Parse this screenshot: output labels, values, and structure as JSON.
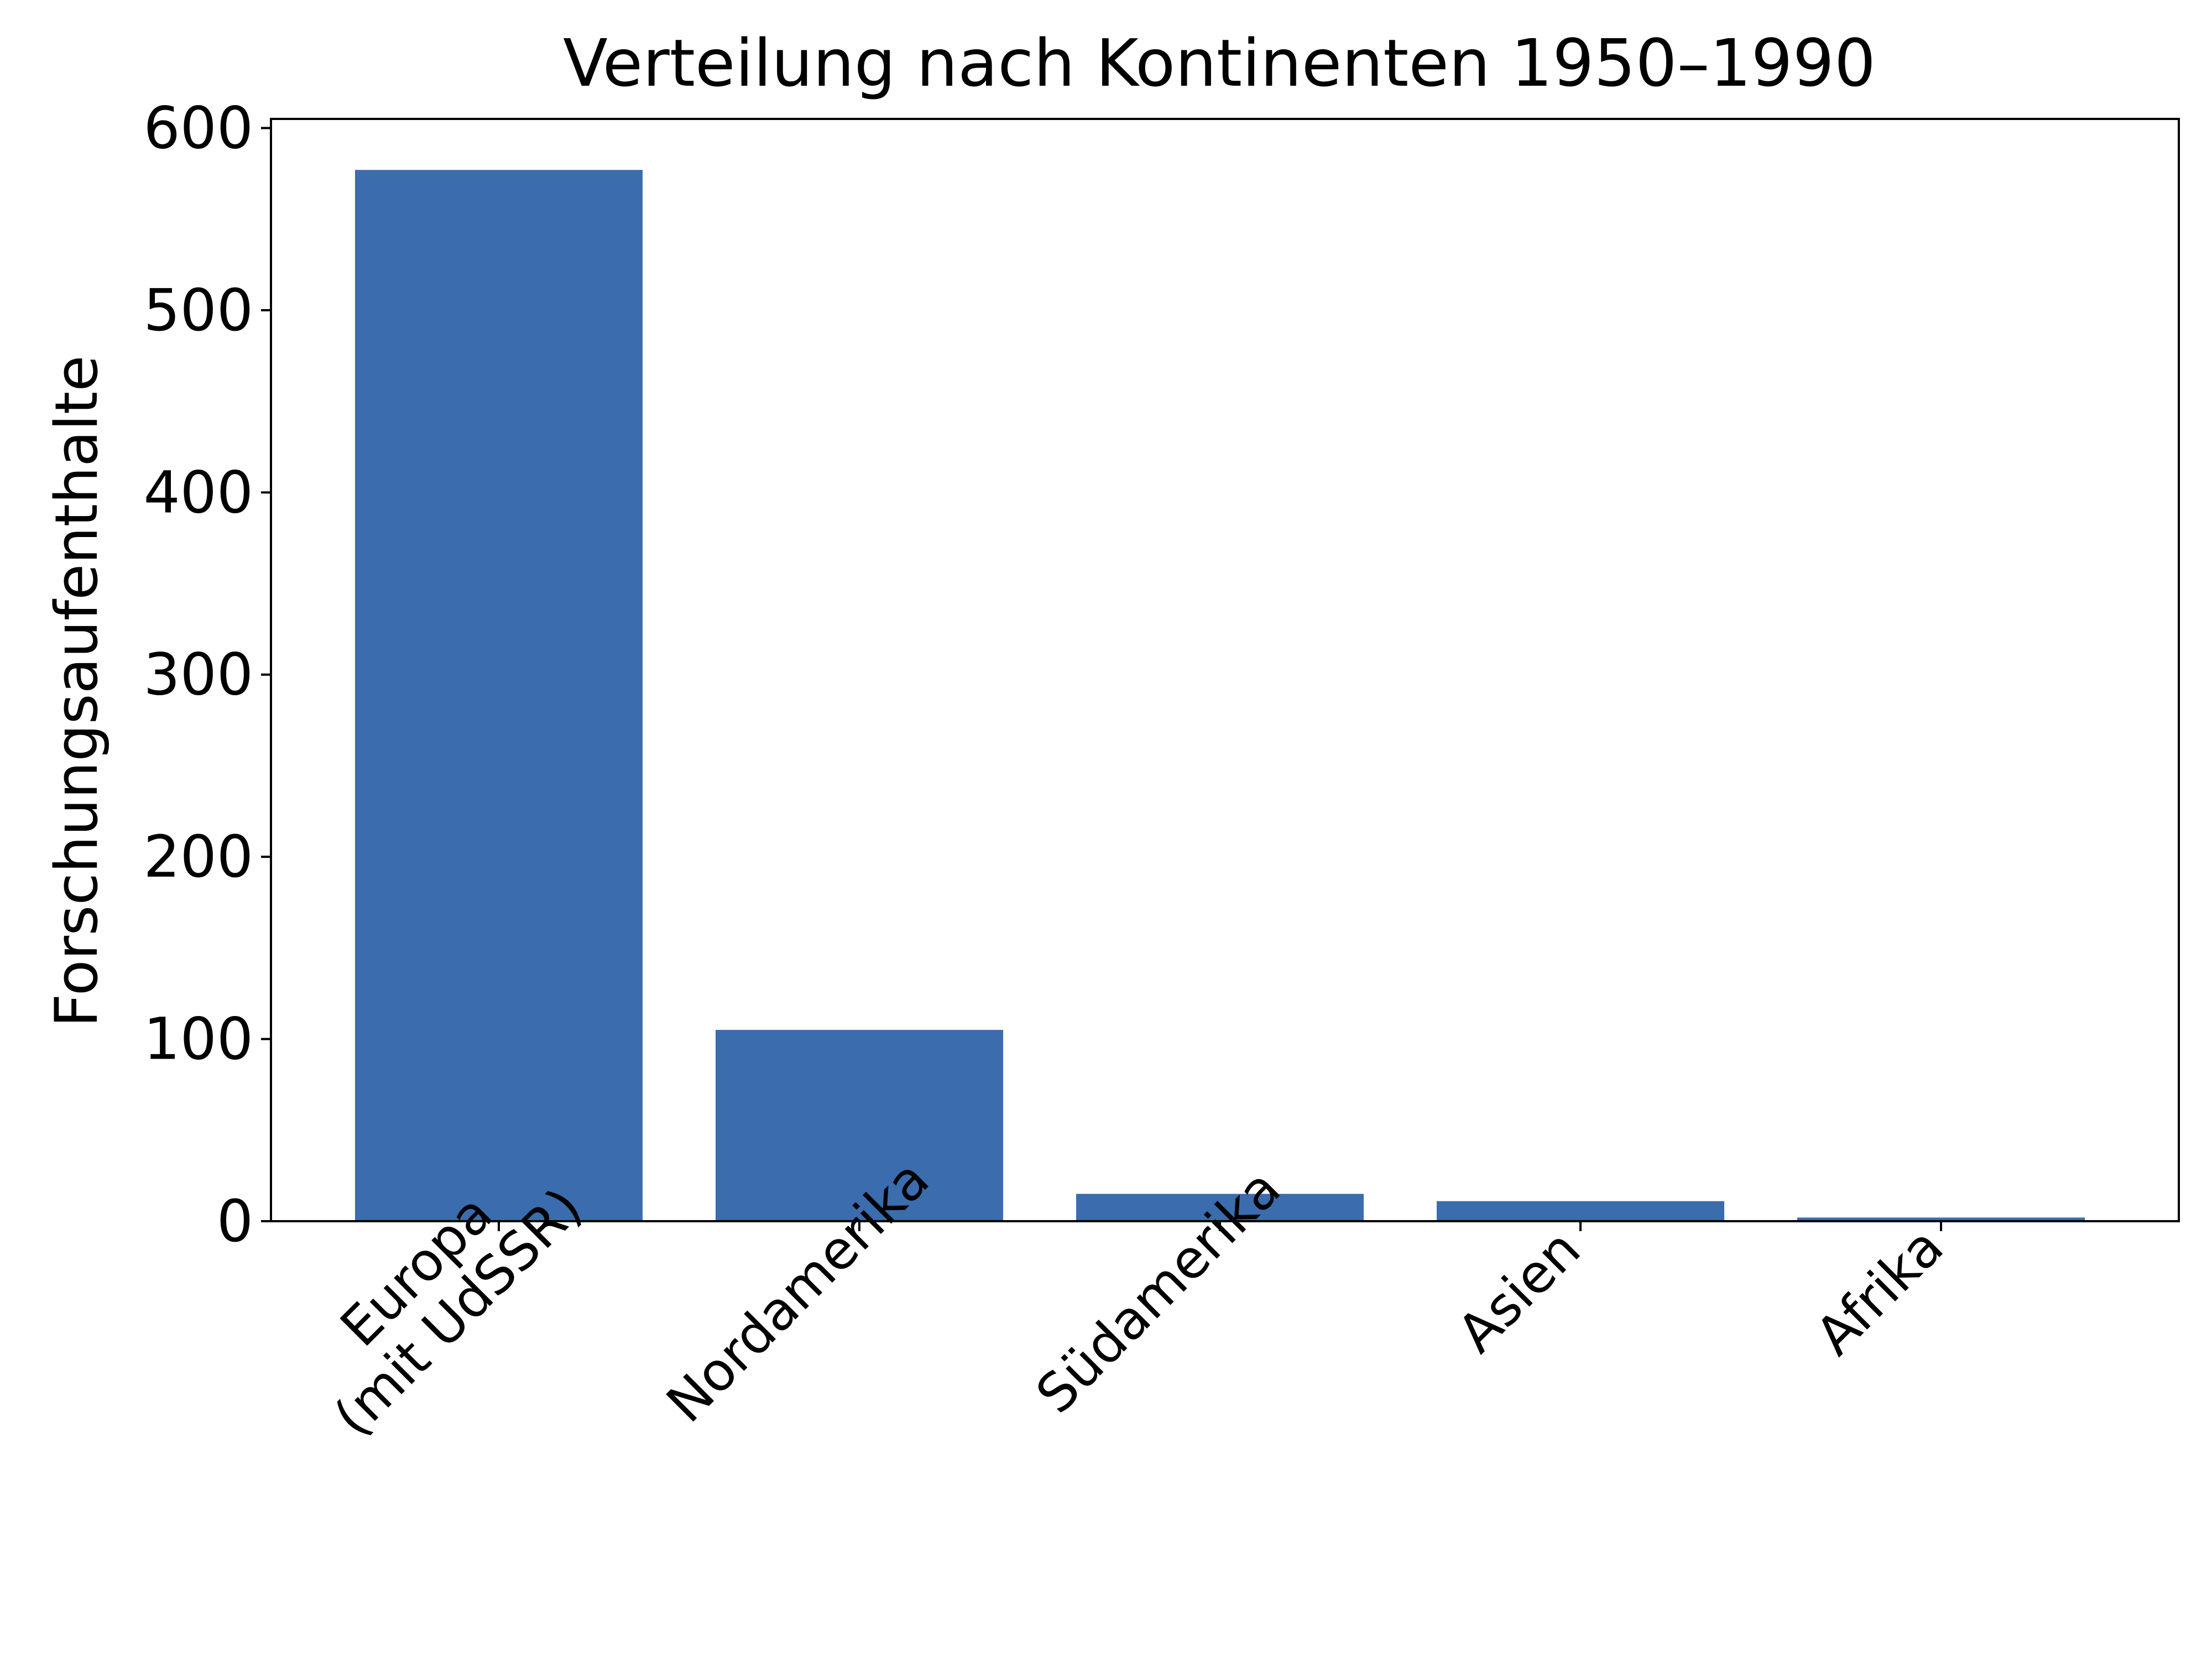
{
  "chart_data": {
    "type": "bar",
    "title": "Verteilung nach Kontinenten 1950–1990",
    "xlabel": "",
    "ylabel": "Forschungsaufenthalte",
    "categories": [
      [
        "Europa",
        "(mit UdSSR)"
      ],
      [
        "Nordamerika"
      ],
      [
        "Südamerika"
      ],
      [
        "Asien"
      ],
      [
        "Afrika"
      ]
    ],
    "values": [
      577,
      105,
      15,
      11,
      2
    ],
    "ylim": [
      0,
      605
    ],
    "yticks": [
      0,
      100,
      200,
      300,
      400,
      500,
      600
    ],
    "grid": false,
    "bar_color": "#3a6cae"
  }
}
